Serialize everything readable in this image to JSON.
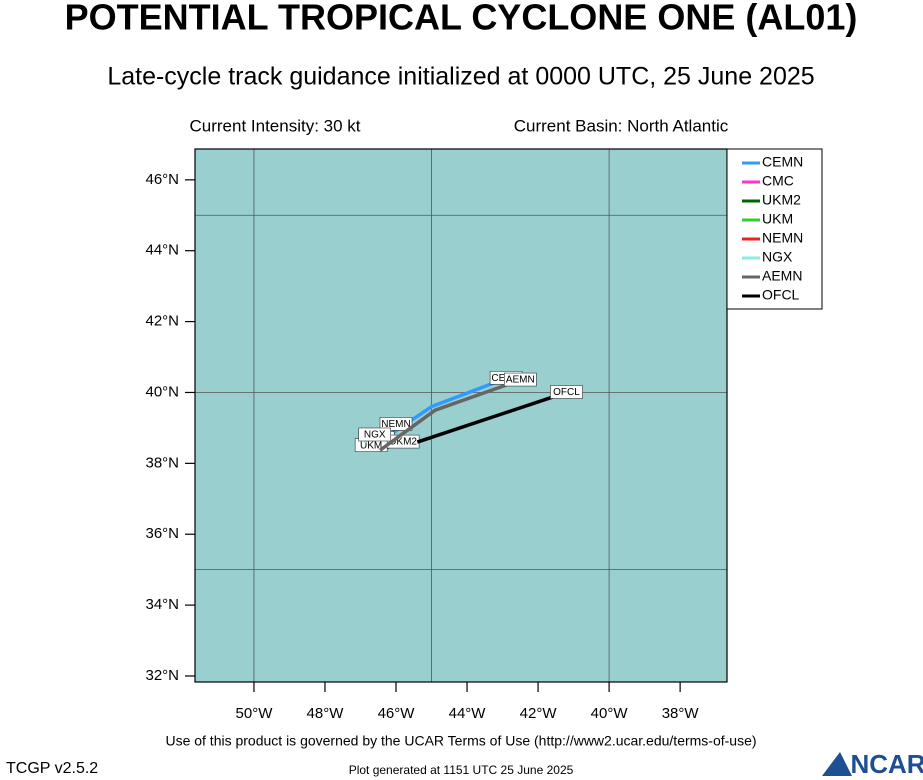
{
  "chart_data": {
    "type": "track",
    "title": "POTENTIAL TROPICAL CYCLONE ONE (AL01)",
    "subtitle": "Late-cycle track guidance initialized at 0000 UTC, 25 June 2025",
    "annotations": [
      "Current Intensity: 30 kt",
      "Current Basin: North Atlantic"
    ],
    "footer": "Use of this product is governed by the UCAR Terms of Use (http://www2.ucar.edu/terms-of-use)",
    "version": "TCGP v2.5.2",
    "generated": "Plot generated at 1151 UTC   25 June 2025",
    "logo": "NCAR",
    "xlim": [
      -51.66,
      -36.68
    ],
    "ylim": [
      31.83,
      46.87
    ],
    "xticks": [
      {
        "value": -50,
        "label": "50°W"
      },
      {
        "value": -48,
        "label": "48°W"
      },
      {
        "value": -46,
        "label": "46°W"
      },
      {
        "value": -44,
        "label": "44°W"
      },
      {
        "value": -42,
        "label": "42°W"
      },
      {
        "value": -40,
        "label": "40°W"
      },
      {
        "value": -38,
        "label": "38°W"
      }
    ],
    "yticks": [
      {
        "value": 32,
        "label": "32°N"
      },
      {
        "value": 34,
        "label": "34°N"
      },
      {
        "value": 36,
        "label": "36°N"
      },
      {
        "value": 38,
        "label": "38°N"
      },
      {
        "value": 40,
        "label": "40°N"
      },
      {
        "value": 42,
        "label": "42°N"
      },
      {
        "value": 44,
        "label": "44°N"
      },
      {
        "value": 46,
        "label": "46°N"
      }
    ],
    "grid_x": [
      -50,
      -45,
      -40
    ],
    "grid_y": [
      35,
      40,
      45
    ],
    "background": "#99cfcf",
    "legend": "outside-right",
    "series": [
      {
        "name": "CEMN",
        "color": "#3399ff",
        "x": [
          -46.4,
          -45.0,
          -42.9
        ],
        "values": [
          38.65,
          39.6,
          40.4
        ]
      },
      {
        "name": "CMC",
        "color": "#ff33cc",
        "x": [
          -46.8,
          -46.5
        ],
        "values": [
          38.5,
          38.7
        ]
      },
      {
        "name": "UKM2",
        "color": "#006600",
        "x": [
          -46.4,
          -45.8
        ],
        "values": [
          38.4,
          38.6
        ]
      },
      {
        "name": "UKM",
        "color": "#33cc33",
        "x": [
          -46.9,
          -46.7
        ],
        "values": [
          38.4,
          38.5
        ]
      },
      {
        "name": "NEMN",
        "color": "#ee2222",
        "x": [
          -46.7,
          -46.0
        ],
        "values": [
          38.85,
          39.1
        ]
      },
      {
        "name": "NGX",
        "color": "#88eedd",
        "x": [
          -46.9,
          -46.6
        ],
        "values": [
          38.6,
          38.8
        ]
      },
      {
        "name": "AEMN",
        "color": "#666666",
        "x": [
          -46.45,
          -44.9,
          -42.5
        ],
        "values": [
          38.37,
          39.5,
          40.35
        ]
      },
      {
        "name": "OFCL",
        "color": "#000000",
        "x": [
          -45.4,
          -41.2
        ],
        "values": [
          38.6,
          40.0
        ]
      }
    ]
  }
}
